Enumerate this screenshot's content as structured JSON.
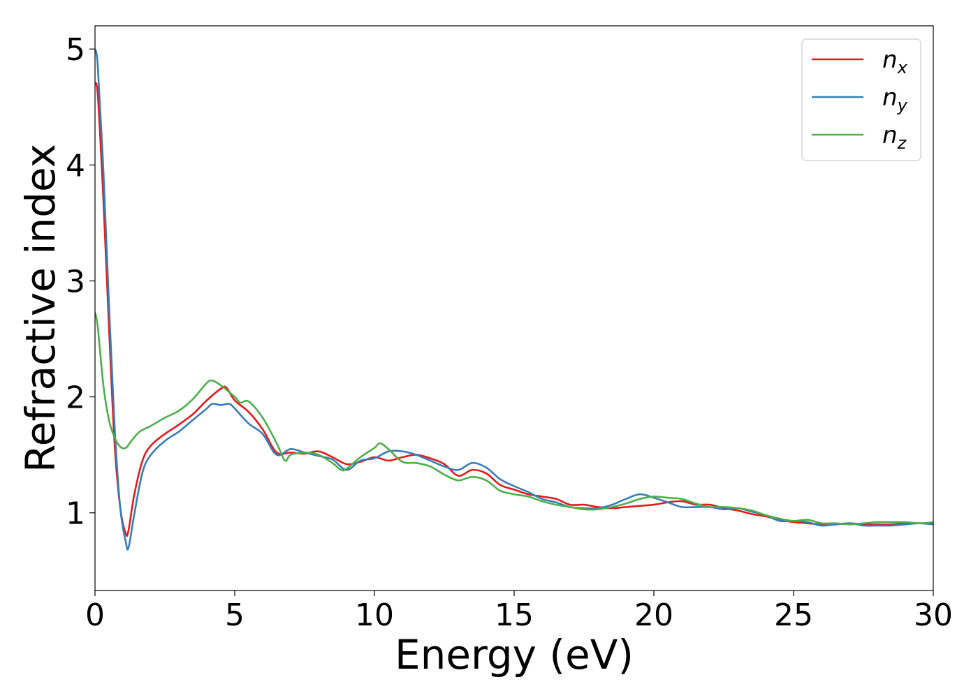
{
  "chart_data": {
    "type": "line",
    "xlabel": "Energy (eV)",
    "ylabel": "Refractive index",
    "xlim": [
      0,
      30
    ],
    "ylim": [
      0.33,
      5.2
    ],
    "xticks": [
      0,
      5,
      10,
      15,
      20,
      25,
      30
    ],
    "xtick_labels": [
      "0",
      "5",
      "10",
      "15",
      "20",
      "25",
      "30"
    ],
    "yticks": [
      1,
      2,
      3,
      4,
      5
    ],
    "ytick_labels": [
      "1",
      "2",
      "3",
      "4",
      "5"
    ],
    "grid": false,
    "legend_position": "top-right",
    "series": [
      {
        "name": "n",
        "subscript": "x",
        "color": "#e41a1c",
        "x": [
          0,
          0.1,
          0.3,
          0.5,
          0.7,
          0.9,
          1.1,
          1.2,
          1.4,
          1.7,
          2.0,
          2.5,
          3.0,
          3.5,
          4.0,
          4.5,
          4.7,
          5.0,
          5.5,
          6.0,
          6.5,
          7.0,
          7.5,
          8.0,
          8.5,
          9.0,
          9.5,
          10.0,
          10.5,
          11.0,
          11.5,
          12.0,
          12.5,
          13.0,
          13.5,
          14.0,
          14.5,
          15.0,
          15.5,
          16.0,
          16.5,
          17.0,
          17.5,
          18.0,
          18.5,
          19.0,
          19.5,
          20.0,
          20.5,
          21.0,
          21.5,
          22.0,
          22.5,
          23.0,
          23.5,
          24.0,
          24.5,
          25.0,
          25.5,
          26.0,
          26.5,
          27.0,
          27.5,
          28.0,
          28.5,
          29.0,
          29.5,
          30.0
        ],
        "y": [
          4.7,
          4.6,
          3.7,
          2.6,
          1.6,
          1.05,
          0.82,
          0.85,
          1.15,
          1.45,
          1.58,
          1.68,
          1.76,
          1.85,
          1.97,
          2.07,
          2.08,
          1.97,
          1.87,
          1.72,
          1.52,
          1.52,
          1.51,
          1.53,
          1.48,
          1.42,
          1.44,
          1.48,
          1.45,
          1.48,
          1.5,
          1.47,
          1.42,
          1.32,
          1.37,
          1.34,
          1.24,
          1.2,
          1.16,
          1.14,
          1.12,
          1.07,
          1.07,
          1.05,
          1.04,
          1.05,
          1.06,
          1.07,
          1.09,
          1.1,
          1.07,
          1.07,
          1.04,
          1.02,
          0.99,
          0.97,
          0.94,
          0.92,
          0.91,
          0.9,
          0.9,
          0.91,
          0.9,
          0.9,
          0.9,
          0.91,
          0.91,
          0.91
        ]
      },
      {
        "name": "n",
        "subscript": "y",
        "color": "#377eb8",
        "x": [
          0,
          0.1,
          0.3,
          0.5,
          0.7,
          0.9,
          1.1,
          1.2,
          1.4,
          1.7,
          2.0,
          2.5,
          3.0,
          3.5,
          4.0,
          4.2,
          4.5,
          4.8,
          5.0,
          5.5,
          6.0,
          6.5,
          7.0,
          7.5,
          8.0,
          8.5,
          9.0,
          9.5,
          10.0,
          10.5,
          11.0,
          11.5,
          12.0,
          12.5,
          13.0,
          13.5,
          14.0,
          14.5,
          15.0,
          15.5,
          16.0,
          16.5,
          17.0,
          17.5,
          18.0,
          18.5,
          19.0,
          19.5,
          20.0,
          20.5,
          21.0,
          21.5,
          22.0,
          22.5,
          23.0,
          23.5,
          24.0,
          24.5,
          25.0,
          25.5,
          26.0,
          26.5,
          27.0,
          27.5,
          28.0,
          28.5,
          29.0,
          29.5,
          30.0
        ],
        "y": [
          5.0,
          4.85,
          3.95,
          2.8,
          1.75,
          1.05,
          0.75,
          0.7,
          0.98,
          1.35,
          1.5,
          1.62,
          1.7,
          1.8,
          1.9,
          1.94,
          1.93,
          1.94,
          1.9,
          1.77,
          1.68,
          1.5,
          1.55,
          1.52,
          1.49,
          1.46,
          1.37,
          1.45,
          1.47,
          1.53,
          1.53,
          1.5,
          1.45,
          1.4,
          1.37,
          1.43,
          1.39,
          1.29,
          1.23,
          1.18,
          1.12,
          1.09,
          1.05,
          1.04,
          1.04,
          1.07,
          1.12,
          1.16,
          1.13,
          1.09,
          1.05,
          1.05,
          1.05,
          1.03,
          1.04,
          1.01,
          0.98,
          0.93,
          0.93,
          0.92,
          0.89,
          0.9,
          0.91,
          0.89,
          0.89,
          0.89,
          0.9,
          0.91,
          0.9
        ]
      },
      {
        "name": "n",
        "subscript": "z",
        "color": "#4daf4a",
        "x": [
          0,
          0.1,
          0.3,
          0.5,
          0.7,
          0.9,
          1.1,
          1.3,
          1.6,
          2.0,
          2.5,
          3.0,
          3.5,
          4.0,
          4.2,
          4.5,
          5.0,
          5.2,
          5.5,
          6.0,
          6.5,
          6.8,
          7.0,
          7.5,
          8.0,
          8.5,
          8.8,
          9.0,
          9.5,
          10.0,
          10.2,
          10.5,
          11.0,
          11.5,
          12.0,
          12.5,
          13.0,
          13.5,
          14.0,
          14.5,
          15.0,
          15.5,
          16.0,
          16.5,
          17.0,
          17.5,
          18.0,
          18.5,
          19.0,
          19.5,
          20.0,
          20.5,
          21.0,
          21.5,
          22.0,
          22.5,
          23.0,
          23.5,
          24.0,
          24.5,
          25.0,
          25.5,
          26.0,
          26.5,
          27.0,
          27.5,
          28.0,
          28.5,
          29.0,
          29.5,
          30.0
        ],
        "y": [
          2.73,
          2.6,
          2.1,
          1.8,
          1.65,
          1.57,
          1.56,
          1.62,
          1.7,
          1.75,
          1.82,
          1.88,
          1.98,
          2.12,
          2.14,
          2.1,
          2.0,
          1.95,
          1.96,
          1.82,
          1.6,
          1.45,
          1.5,
          1.52,
          1.5,
          1.43,
          1.37,
          1.38,
          1.48,
          1.56,
          1.6,
          1.55,
          1.44,
          1.43,
          1.4,
          1.33,
          1.28,
          1.31,
          1.28,
          1.19,
          1.16,
          1.14,
          1.1,
          1.07,
          1.05,
          1.03,
          1.03,
          1.05,
          1.08,
          1.12,
          1.14,
          1.13,
          1.12,
          1.08,
          1.05,
          1.05,
          1.04,
          1.02,
          0.98,
          0.95,
          0.93,
          0.94,
          0.91,
          0.91,
          0.9,
          0.91,
          0.92,
          0.92,
          0.92,
          0.91,
          0.92
        ]
      }
    ]
  }
}
